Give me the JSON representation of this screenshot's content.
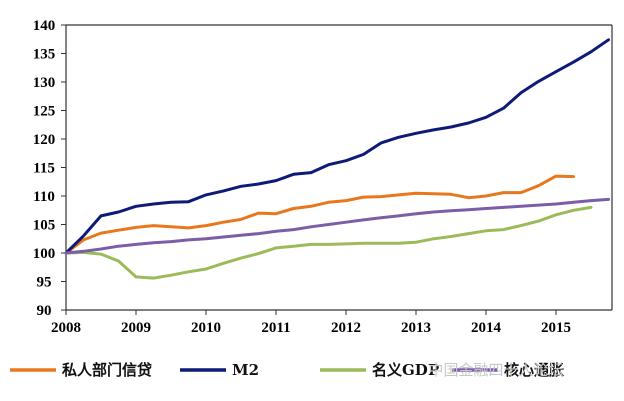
{
  "chart_data": {
    "type": "line",
    "xlabel": "",
    "ylabel": "",
    "ylim": [
      90,
      140
    ],
    "xlim": [
      2008,
      2015.8
    ],
    "y_ticks": [
      90,
      95,
      100,
      105,
      110,
      115,
      120,
      125,
      130,
      135,
      140
    ],
    "x_ticks": [
      "2008",
      "2009",
      "2010",
      "2011",
      "2012",
      "2013",
      "2014",
      "2015"
    ],
    "grid": false,
    "legend_position": "bottom",
    "series": [
      {
        "name": "私人部门信贷",
        "color": "#e8781e",
        "x": [
          2008.0,
          2008.25,
          2008.5,
          2008.75,
          2009.0,
          2009.25,
          2009.5,
          2009.75,
          2010.0,
          2010.25,
          2010.5,
          2010.75,
          2011.0,
          2011.25,
          2011.5,
          2011.75,
          2012.0,
          2012.25,
          2012.5,
          2012.75,
          2013.0,
          2013.25,
          2013.5,
          2013.75,
          2014.0,
          2014.25,
          2014.5,
          2014.75,
          2015.0,
          2015.25
        ],
        "values": [
          100.0,
          102.3,
          103.5,
          104.0,
          104.5,
          104.8,
          104.6,
          104.4,
          104.8,
          105.4,
          105.9,
          107.0,
          106.9,
          107.8,
          108.2,
          108.9,
          109.2,
          109.8,
          109.9,
          110.2,
          110.5,
          110.4,
          110.3,
          109.7,
          110.0,
          110.6,
          110.6,
          111.8,
          113.5,
          113.4
        ]
      },
      {
        "name": "M2",
        "color": "#0d1a78",
        "x": [
          2008.0,
          2008.25,
          2008.5,
          2008.75,
          2009.0,
          2009.25,
          2009.5,
          2009.75,
          2010.0,
          2010.25,
          2010.5,
          2010.75,
          2011.0,
          2011.25,
          2011.5,
          2011.75,
          2012.0,
          2012.25,
          2012.5,
          2012.75,
          2013.0,
          2013.25,
          2013.5,
          2013.75,
          2014.0,
          2014.25,
          2014.5,
          2014.75,
          2015.0,
          2015.25,
          2015.5,
          2015.75
        ],
        "values": [
          100.0,
          103.0,
          106.5,
          107.2,
          108.2,
          108.6,
          108.9,
          109.0,
          110.2,
          110.9,
          111.7,
          112.1,
          112.7,
          113.8,
          114.1,
          115.5,
          116.2,
          117.3,
          119.3,
          120.3,
          121.0,
          121.6,
          122.1,
          122.8,
          123.8,
          125.4,
          128.1,
          130.1,
          131.8,
          133.5,
          135.3,
          137.4
        ]
      },
      {
        "name": "名义GDP",
        "color": "#9bbb59",
        "x": [
          2008.0,
          2008.25,
          2008.5,
          2008.75,
          2009.0,
          2009.25,
          2009.5,
          2009.75,
          2010.0,
          2010.25,
          2010.5,
          2010.75,
          2011.0,
          2011.25,
          2011.5,
          2011.75,
          2012.0,
          2012.25,
          2012.5,
          2012.75,
          2013.0,
          2013.25,
          2013.5,
          2013.75,
          2014.0,
          2014.25,
          2014.5,
          2014.75,
          2015.0,
          2015.25,
          2015.5
        ],
        "values": [
          100.0,
          100.1,
          99.8,
          98.6,
          95.8,
          95.6,
          96.1,
          96.7,
          97.2,
          98.2,
          99.1,
          99.9,
          100.9,
          101.2,
          101.5,
          101.5,
          101.6,
          101.7,
          101.7,
          101.7,
          101.9,
          102.5,
          102.9,
          103.4,
          103.9,
          104.1,
          104.8,
          105.6,
          106.7,
          107.5,
          108.0
        ]
      },
      {
        "name": "核心通胀",
        "color": "#7b5ea7",
        "x": [
          2008.0,
          2008.25,
          2008.5,
          2008.75,
          2009.0,
          2009.25,
          2009.5,
          2009.75,
          2010.0,
          2010.25,
          2010.5,
          2010.75,
          2011.0,
          2011.25,
          2011.5,
          2011.75,
          2012.0,
          2012.25,
          2012.5,
          2012.75,
          2013.0,
          2013.25,
          2013.5,
          2013.75,
          2014.0,
          2014.25,
          2014.5,
          2014.75,
          2015.0,
          2015.25,
          2015.5,
          2015.75
        ],
        "values": [
          100.0,
          100.3,
          100.7,
          101.2,
          101.5,
          101.8,
          102.0,
          102.3,
          102.5,
          102.8,
          103.1,
          103.4,
          103.8,
          104.1,
          104.6,
          105.0,
          105.4,
          105.8,
          106.2,
          106.5,
          106.9,
          107.2,
          107.4,
          107.6,
          107.8,
          108.0,
          108.2,
          108.4,
          108.6,
          108.9,
          109.2,
          109.4
        ]
      }
    ]
  },
  "watermark": "中国金融四十人论坛"
}
